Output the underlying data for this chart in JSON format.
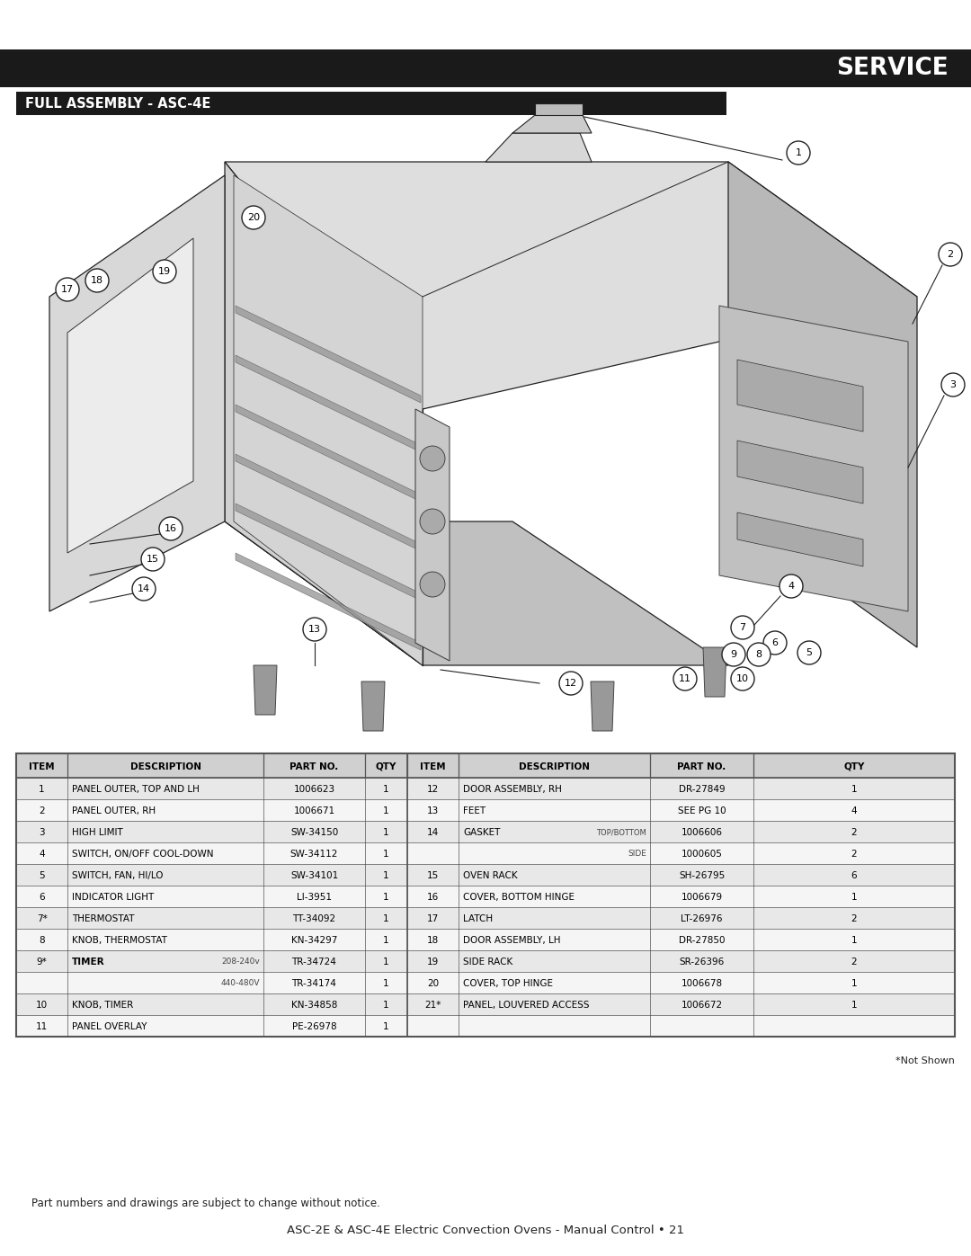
{
  "page_bg": "#ffffff",
  "header_bar_color": "#1a1a1a",
  "header_text": "SERVICE",
  "header_text_color": "#ffffff",
  "subheader_bar_color": "#1a1a1a",
  "subheader_text": "FULL ASSEMBLY - ASC-4E",
  "subheader_text_color": "#ffffff",
  "table_header_bg": "#d0d0d0",
  "table_row_alt_bg": "#e8e8e8",
  "table_row_bg": "#f5f5f5",
  "table_border_color": "#555555",
  "rows_left": [
    [
      "1",
      "PANEL OUTER, TOP AND LH",
      "1006623",
      "1"
    ],
    [
      "2",
      "PANEL OUTER, RH",
      "1006671",
      "1"
    ],
    [
      "3",
      "HIGH LIMIT",
      "SW-34150",
      "1"
    ],
    [
      "4",
      "SWITCH, ON/OFF COOL-DOWN",
      "SW-34112",
      "1"
    ],
    [
      "5",
      "SWITCH, FAN, HI/LO",
      "SW-34101",
      "1"
    ],
    [
      "6",
      "INDICATOR LIGHT",
      "LI-3951",
      "1"
    ],
    [
      "7*",
      "THERMOSTAT",
      "TT-34092",
      "1"
    ],
    [
      "8",
      "KNOB, THERMOSTAT",
      "KN-34297",
      "1"
    ],
    [
      "9*",
      "TIMER",
      "TR-34724",
      "1"
    ],
    [
      "",
      "",
      "TR-34174",
      "1"
    ],
    [
      "10",
      "KNOB, TIMER",
      "KN-34858",
      "1"
    ],
    [
      "11",
      "PANEL OVERLAY",
      "PE-26978",
      "1"
    ]
  ],
  "rows_right": [
    [
      "12",
      "DOOR ASSEMBLY, RH",
      "DR-27849",
      "1"
    ],
    [
      "13",
      "FEET",
      "SEE PG 10",
      "4"
    ],
    [
      "14",
      "GASKET",
      "1006606",
      "2"
    ],
    [
      "",
      "",
      "1000605",
      "2"
    ],
    [
      "15",
      "OVEN RACK",
      "SH-26795",
      "6"
    ],
    [
      "16",
      "COVER, BOTTOM HINGE",
      "1006679",
      "1"
    ],
    [
      "17",
      "LATCH",
      "LT-26976",
      "2"
    ],
    [
      "18",
      "DOOR ASSEMBLY, LH",
      "DR-27850",
      "1"
    ],
    [
      "19",
      "SIDE RACK",
      "SR-26396",
      "2"
    ],
    [
      "20",
      "COVER, TOP HINGE",
      "1006678",
      "1"
    ],
    [
      "21*",
      "PANEL, LOUVERED ACCESS",
      "1006672",
      "1"
    ],
    [
      "",
      "",
      "",
      ""
    ]
  ],
  "not_shown_text": "*Not Shown",
  "footer_note": "Part numbers and drawings are subject to change without notice.",
  "footer_title": "ASC-2E & ASC-4E Electric Convection Ovens - Manual Control • 21"
}
